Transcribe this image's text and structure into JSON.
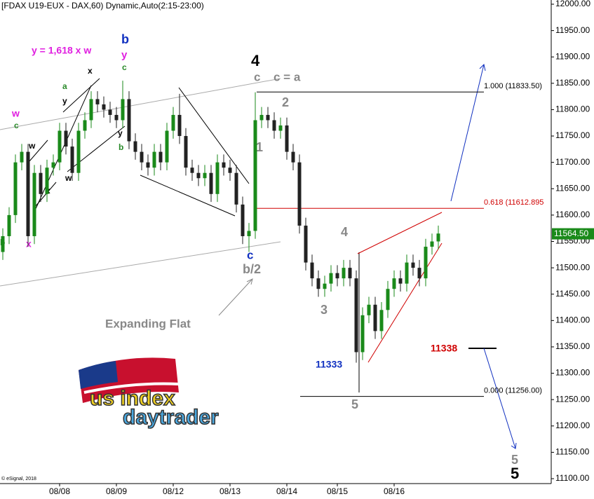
{
  "chart_data": {
    "type": "candlestick",
    "title": "[FDAX U19-EUX - DAX,60) Dynamic,Auto(2:15-23:00)",
    "up_color": "#1a8a1a",
    "down_color": "#222222",
    "open": [
      11530,
      11560,
      11600,
      11700,
      11720,
      11560,
      11680,
      11640,
      11690,
      11700,
      11760,
      11730,
      11680,
      11760,
      11780,
      11820,
      11810,
      11800,
      11790,
      11780,
      11820,
      11740,
      11720,
      11700,
      11690,
      11720,
      11700,
      11760,
      11790,
      11750,
      11690,
      11680,
      11670,
      11680,
      11640,
      11700,
      11690,
      11680,
      11620,
      11560,
      11570,
      11780,
      11790,
      11780,
      11760,
      11770,
      11720,
      11700,
      11580,
      11510,
      11480,
      11460,
      11470,
      11490,
      11480,
      11500,
      11480,
      11340,
      11410,
      11430,
      11380,
      11420,
      11460,
      11480,
      11470,
      11510,
      11500,
      11480,
      11540,
      11550
    ],
    "high": [
      11575,
      11615,
      11715,
      11735,
      11735,
      11695,
      11695,
      11705,
      11715,
      11775,
      11775,
      11745,
      11775,
      11795,
      11835,
      11835,
      11825,
      11815,
      11805,
      11855,
      11835,
      11755,
      11735,
      11715,
      11735,
      11735,
      11775,
      11805,
      11830,
      11765,
      11705,
      11695,
      11695,
      11695,
      11715,
      11715,
      11705,
      11695,
      11635,
      11585,
      11833,
      11805,
      11805,
      11795,
      11785,
      11785,
      11735,
      11715,
      11595,
      11525,
      11495,
      11485,
      11505,
      11505,
      11515,
      11515,
      11495,
      11425,
      11445,
      11445,
      11435,
      11475,
      11495,
      11495,
      11525,
      11525,
      11515,
      11555,
      11565,
      11580
    ],
    "low": [
      11515,
      11545,
      11585,
      11685,
      11540,
      11545,
      11625,
      11625,
      11675,
      11685,
      11715,
      11665,
      11665,
      11745,
      11765,
      11795,
      11785,
      11775,
      11765,
      11765,
      11725,
      11705,
      11685,
      11675,
      11675,
      11685,
      11685,
      11745,
      11735,
      11675,
      11665,
      11655,
      11655,
      11625,
      11625,
      11675,
      11665,
      11605,
      11545,
      11530,
      11555,
      11765,
      11765,
      11745,
      11745,
      11705,
      11685,
      11565,
      11495,
      11465,
      11445,
      11445,
      11455,
      11465,
      11465,
      11465,
      11320,
      11325,
      11395,
      11365,
      11365,
      11405,
      11445,
      11455,
      11455,
      11485,
      11465,
      11465,
      11525,
      11535
    ],
    "close": [
      11560,
      11600,
      11700,
      11720,
      11560,
      11680,
      11640,
      11690,
      11700,
      11760,
      11730,
      11680,
      11760,
      11780,
      11820,
      11810,
      11800,
      11790,
      11780,
      11820,
      11740,
      11720,
      11700,
      11690,
      11720,
      11700,
      11760,
      11790,
      11750,
      11690,
      11680,
      11670,
      11680,
      11640,
      11700,
      11690,
      11680,
      11620,
      11560,
      11570,
      11780,
      11790,
      11780,
      11760,
      11770,
      11720,
      11700,
      11580,
      11510,
      11480,
      11460,
      11470,
      11490,
      11480,
      11500,
      11480,
      11340,
      11410,
      11430,
      11380,
      11420,
      11460,
      11480,
      11470,
      11510,
      11500,
      11480,
      11540,
      11550,
      11565
    ],
    "xticks": [
      {
        "value": 9,
        "label": "08/08"
      },
      {
        "value": 18,
        "label": "08/09"
      },
      {
        "value": 27,
        "label": "08/12"
      },
      {
        "value": 36,
        "label": "08/13"
      },
      {
        "value": 45,
        "label": "08/14"
      },
      {
        "value": 53,
        "label": "08/15"
      },
      {
        "value": 62,
        "label": "08/16"
      }
    ],
    "ylim": [
      11100,
      12000
    ],
    "yticks": [
      {
        "value": 11100,
        "label": "11100.00"
      },
      {
        "value": 11150,
        "label": "11150.00"
      },
      {
        "value": 11200,
        "label": "11200.00"
      },
      {
        "value": 11250,
        "label": "11250.00"
      },
      {
        "value": 11300,
        "label": "11300.00"
      },
      {
        "value": 11350,
        "label": "11350.00"
      },
      {
        "value": 11400,
        "label": "11400.00"
      },
      {
        "value": 11450,
        "label": "11450.00"
      },
      {
        "value": 11500,
        "label": "11500.00"
      },
      {
        "value": 11550,
        "label": "11550.00"
      },
      {
        "value": 11600,
        "label": "11600.00"
      },
      {
        "value": 11650,
        "label": "11650.00"
      },
      {
        "value": 11700,
        "label": "11700.00"
      },
      {
        "value": 11750,
        "label": "11750.00"
      },
      {
        "value": 11800,
        "label": "11800.00"
      },
      {
        "value": 11850,
        "label": "11850.00"
      },
      {
        "value": 11900,
        "label": "11900.00"
      },
      {
        "value": 11950,
        "label": "11950.00"
      },
      {
        "value": 12000,
        "label": "12000.00"
      }
    ],
    "last_price": {
      "value": 11564.5,
      "label": "11564.50",
      "color": "#1a8a1a"
    },
    "levels": [
      {
        "label": "1.000 (11833.50)",
        "value": 11833.5,
        "color": "#000000"
      },
      {
        "label": "0.618 (11612.895",
        "value": 11612.895,
        "color": "#d00000"
      },
      {
        "label": "0.000 (11256.00)",
        "value": 11256,
        "color": "#000000"
      }
    ],
    "annotations": [
      "y = 1,618 x w",
      "b",
      "y",
      "c",
      "4",
      "c",
      "c = a",
      "2",
      "1",
      "c",
      "b/2",
      "4",
      "3",
      "Expanding Flat",
      "11333",
      "5",
      "11338",
      "5",
      "5",
      "a",
      "x",
      "y",
      "y",
      "b",
      "w",
      "c",
      "w",
      "x",
      "w",
      "b",
      "x",
      "© eSignal, 2018"
    ],
    "logo": [
      "us index",
      "daytrader"
    ]
  }
}
